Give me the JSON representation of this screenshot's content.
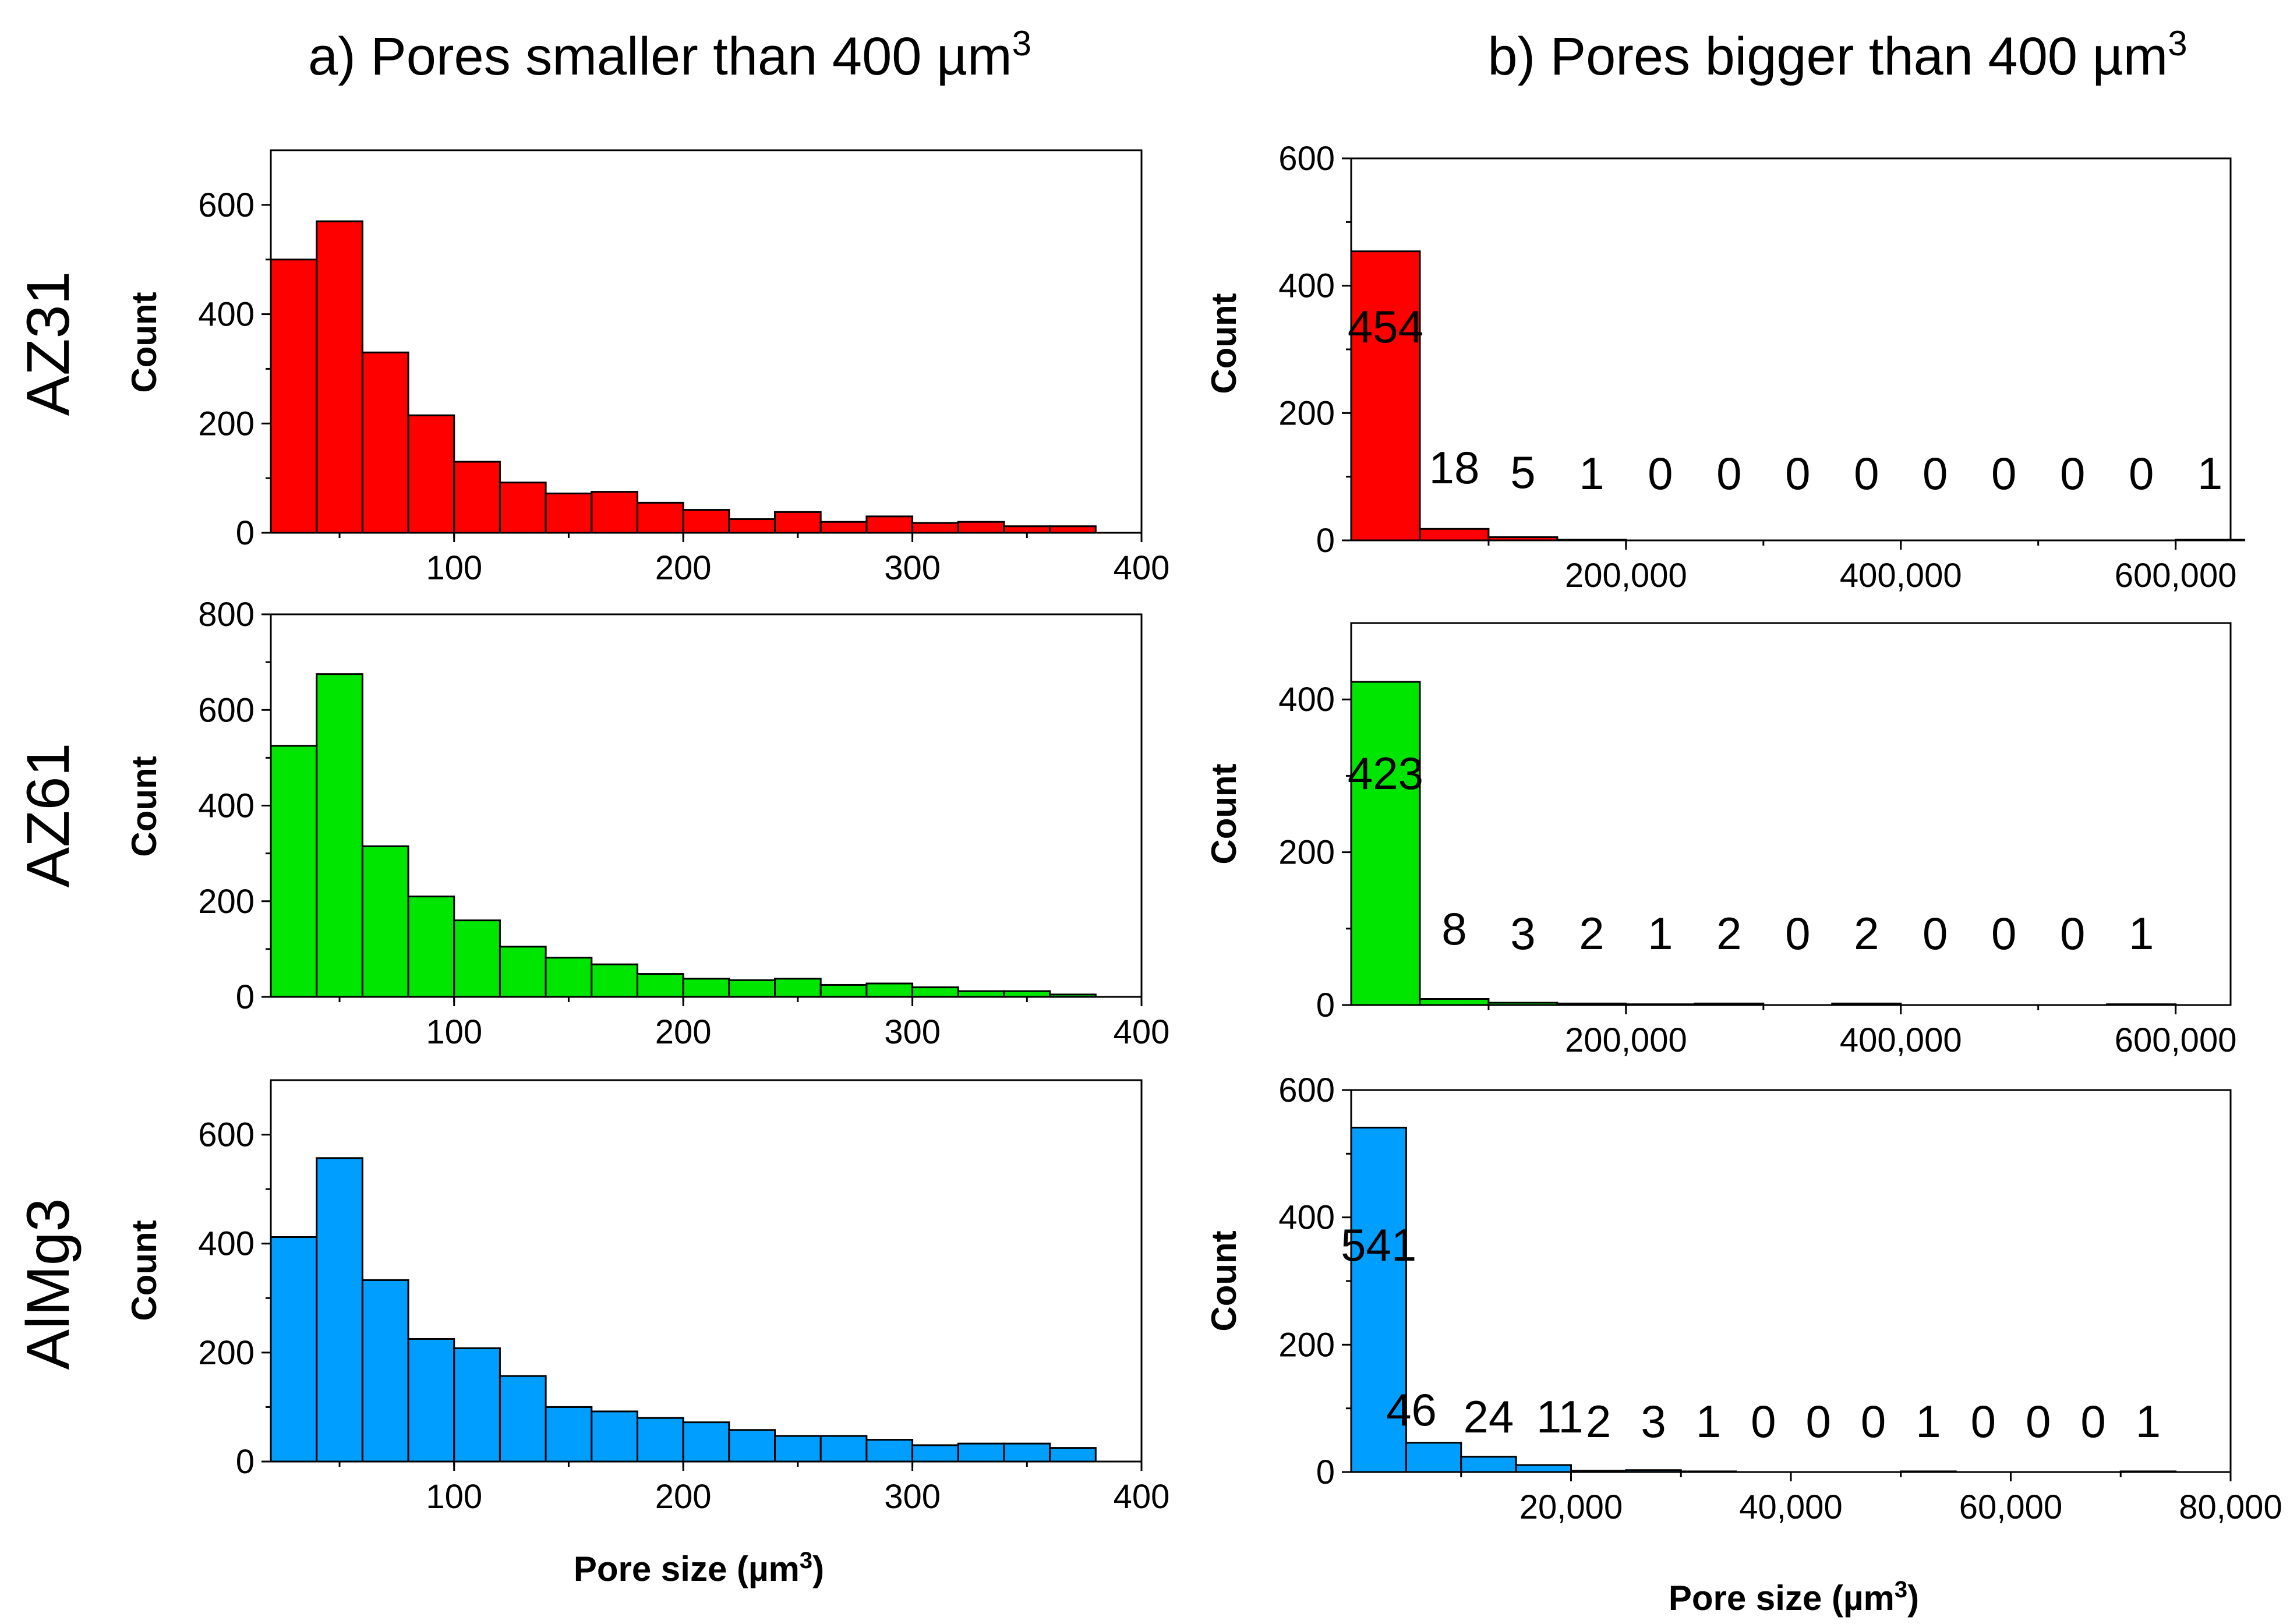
{
  "figure": {
    "column_titles": [
      "a) Pores smaller than 400 µm",
      "b) Pores bigger than 400 µm"
    ],
    "column_title_superscript": "3",
    "row_labels": [
      "AZ31",
      "AZ61",
      "AlMg3"
    ],
    "xlabel_main": "Pore size (µm",
    "xlabel_super": "3",
    "xlabel_close": ")",
    "ylabel": "Count"
  },
  "colors": {
    "AZ31": "#ff0000",
    "AZ61": "#00e600",
    "AlMg3": "#009fff"
  },
  "chart_data": [
    {
      "id": "az31-small",
      "type": "bar",
      "alloy": "AZ31",
      "title": "a) Pores smaller than 400 µm3",
      "xlabel": "",
      "ylabel": "Count",
      "xlim": [
        20,
        400
      ],
      "ylim": [
        0,
        700
      ],
      "bin_width": 20,
      "bin_edges_start": [
        20,
        40,
        60,
        80,
        100,
        120,
        140,
        160,
        180,
        200,
        220,
        240,
        260,
        280,
        300,
        320,
        340,
        360
      ],
      "values": [
        500,
        570,
        330,
        215,
        130,
        92,
        72,
        75,
        55,
        42,
        25,
        38,
        20,
        30,
        18,
        20,
        12,
        12
      ],
      "x_ticks": [
        100,
        200,
        300,
        400
      ],
      "y_ticks": [
        0,
        200,
        400,
        600
      ],
      "x_tick_labels": [
        "100",
        "200",
        "300",
        "400"
      ],
      "y_tick_labels": [
        "0",
        "200",
        "400",
        "600"
      ]
    },
    {
      "id": "az61-small",
      "type": "bar",
      "alloy": "AZ61",
      "xlabel": "",
      "ylabel": "Count",
      "xlim": [
        20,
        400
      ],
      "ylim": [
        0,
        800
      ],
      "bin_width": 20,
      "bin_edges_start": [
        20,
        40,
        60,
        80,
        100,
        120,
        140,
        160,
        180,
        200,
        220,
        240,
        260,
        280,
        300,
        320,
        340,
        360
      ],
      "values": [
        525,
        675,
        315,
        210,
        160,
        105,
        82,
        68,
        48,
        38,
        35,
        38,
        25,
        28,
        20,
        12,
        12,
        5
      ],
      "x_ticks": [
        100,
        200,
        300,
        400
      ],
      "y_ticks": [
        0,
        200,
        400,
        600,
        800
      ],
      "x_tick_labels": [
        "100",
        "200",
        "300",
        "400"
      ],
      "y_tick_labels": [
        "0",
        "200",
        "400",
        "600",
        "800"
      ]
    },
    {
      "id": "almg3-small",
      "type": "bar",
      "alloy": "AlMg3",
      "xlabel": "Pore size (µm3)",
      "ylabel": "Count",
      "xlim": [
        20,
        400
      ],
      "ylim": [
        0,
        700
      ],
      "bin_width": 20,
      "bin_edges_start": [
        20,
        40,
        60,
        80,
        100,
        120,
        140,
        160,
        180,
        200,
        220,
        240,
        260,
        280,
        300,
        320,
        340,
        360
      ],
      "values": [
        412,
        557,
        333,
        225,
        208,
        157,
        100,
        92,
        80,
        72,
        58,
        47,
        47,
        40,
        30,
        33,
        33,
        25
      ],
      "x_ticks": [
        100,
        200,
        300,
        400
      ],
      "y_ticks": [
        0,
        200,
        400,
        600
      ],
      "x_tick_labels": [
        "100",
        "200",
        "300",
        "400"
      ],
      "y_tick_labels": [
        "0",
        "200",
        "400",
        "600"
      ]
    },
    {
      "id": "az31-big",
      "type": "bar",
      "alloy": "AZ31",
      "title": "b) Pores bigger than 400 µm3",
      "xlabel": "",
      "ylabel": "Count",
      "xlim": [
        0,
        640000
      ],
      "ylim": [
        0,
        600
      ],
      "bin_width": 50000,
      "bin_edges_start": [
        0,
        50000,
        100000,
        150000,
        200000,
        250000,
        300000,
        350000,
        400000,
        450000,
        500000,
        550000,
        600000
      ],
      "values": [
        454,
        18,
        5,
        1,
        0,
        0,
        0,
        0,
        0,
        0,
        0,
        0,
        1
      ],
      "data_labels": [
        "454",
        "18",
        "5",
        "1",
        "0",
        "0",
        "0",
        "0",
        "0",
        "0",
        "0",
        "0",
        "1"
      ],
      "x_ticks": [
        200000,
        400000,
        600000
      ],
      "y_ticks": [
        0,
        200,
        400,
        600
      ],
      "x_tick_labels": [
        "200,000",
        "400,000",
        "600,000"
      ],
      "y_tick_labels": [
        "0",
        "200",
        "400",
        "600"
      ]
    },
    {
      "id": "az61-big",
      "type": "bar",
      "alloy": "AZ61",
      "xlabel": "",
      "ylabel": "Count",
      "xlim": [
        0,
        640000
      ],
      "ylim": [
        0,
        500
      ],
      "bin_width": 50000,
      "bin_edges_start": [
        0,
        50000,
        100000,
        150000,
        200000,
        250000,
        300000,
        350000,
        400000,
        450000,
        500000,
        550000
      ],
      "values": [
        423,
        8,
        3,
        2,
        1,
        2,
        0,
        2,
        0,
        0,
        0,
        1
      ],
      "data_labels": [
        "423",
        "8",
        "3",
        "2",
        "1",
        "2",
        "0",
        "2",
        "0",
        "0",
        "0",
        "1"
      ],
      "x_ticks": [
        200000,
        400000,
        600000
      ],
      "y_ticks": [
        0,
        200,
        400
      ],
      "x_tick_labels": [
        "200,000",
        "400,000",
        "600,000"
      ],
      "y_tick_labels": [
        "0",
        "200",
        "400"
      ]
    },
    {
      "id": "almg3-big",
      "type": "bar",
      "alloy": "AlMg3",
      "xlabel": "Pore size (µm3)",
      "ylabel": "Count",
      "xlim": [
        0,
        80000
      ],
      "ylim": [
        0,
        600
      ],
      "bin_width": 5000,
      "bin_edges_start": [
        0,
        5000,
        10000,
        15000,
        20000,
        25000,
        30000,
        35000,
        40000,
        45000,
        50000,
        55000,
        60000,
        65000,
        70000
      ],
      "values": [
        541,
        46,
        24,
        11,
        2,
        3,
        1,
        0,
        0,
        0,
        1,
        0,
        0,
        0,
        1
      ],
      "data_labels": [
        "541",
        "46",
        "24",
        "11",
        "2",
        "3",
        "1",
        "0",
        "0",
        "0",
        "1",
        "0",
        "0",
        "0",
        "1"
      ],
      "x_ticks": [
        20000,
        40000,
        60000,
        80000
      ],
      "y_ticks": [
        0,
        200,
        400,
        600
      ],
      "x_tick_labels": [
        "20,000",
        "40,000",
        "60,000",
        "80,000"
      ],
      "y_tick_labels": [
        "0",
        "200",
        "400",
        "600"
      ]
    }
  ]
}
